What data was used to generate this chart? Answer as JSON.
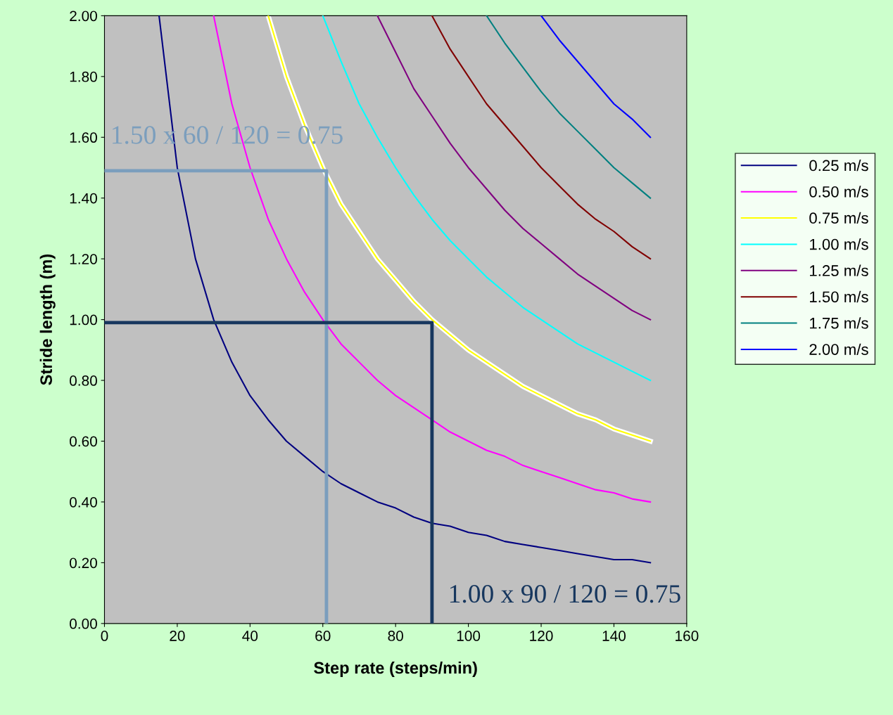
{
  "chart_data": {
    "type": "line",
    "xlabel": "Step rate (steps/min)",
    "ylabel": "Stride length (m)",
    "xlim": [
      0,
      160
    ],
    "xticks": [
      0,
      20,
      40,
      60,
      80,
      100,
      120,
      140,
      160
    ],
    "ylim": [
      0,
      2
    ],
    "yticks": [
      {
        "value": 0,
        "label": "0.00"
      },
      {
        "value": 0.2,
        "label": "0.20"
      },
      {
        "value": 0.4,
        "label": "0.40"
      },
      {
        "value": 0.6,
        "label": "0.60"
      },
      {
        "value": 0.8,
        "label": "0.80"
      },
      {
        "value": 1.0,
        "label": "1.00"
      },
      {
        "value": 1.2,
        "label": "1.20"
      },
      {
        "value": 1.4,
        "label": "1.40"
      },
      {
        "value": 1.6,
        "label": "1.60"
      },
      {
        "value": 1.8,
        "label": "1.80"
      },
      {
        "value": 2.0,
        "label": "2.00"
      }
    ],
    "grid": false,
    "legend": "right",
    "marker": "none",
    "line_style": "solid",
    "series": [
      {
        "color": "#ffffff",
        "x": [
          45,
          50,
          55,
          60,
          65,
          70,
          75,
          80,
          85,
          90,
          95,
          100,
          105,
          110,
          115,
          120,
          125,
          130,
          135,
          140,
          145,
          150
        ],
        "values": [
          2.0,
          1.8,
          1.64,
          1.5,
          1.38,
          1.29,
          1.2,
          1.13,
          1.06,
          1.0,
          0.95,
          0.9,
          0.86,
          0.82,
          0.78,
          0.75,
          0.72,
          0.69,
          0.67,
          0.64,
          0.62,
          0.6
        ]
      },
      {
        "name": "0.25 m/s",
        "color": "#000080",
        "x": [
          15,
          20,
          25,
          30,
          35,
          40,
          45,
          50,
          55,
          60,
          65,
          70,
          75,
          80,
          85,
          90,
          95,
          100,
          105,
          110,
          115,
          120,
          125,
          130,
          135,
          140,
          145,
          150
        ],
        "values": [
          2.0,
          1.5,
          1.2,
          1.0,
          0.86,
          0.75,
          0.67,
          0.6,
          0.55,
          0.5,
          0.46,
          0.43,
          0.4,
          0.38,
          0.35,
          0.33,
          0.32,
          0.3,
          0.29,
          0.27,
          0.26,
          0.25,
          0.24,
          0.23,
          0.22,
          0.21,
          0.21,
          0.2
        ]
      },
      {
        "name": "0.50 m/s",
        "color": "#ff00ff",
        "x": [
          30,
          35,
          40,
          45,
          50,
          55,
          60,
          65,
          70,
          75,
          80,
          85,
          90,
          95,
          100,
          105,
          110,
          115,
          120,
          125,
          130,
          135,
          140,
          145,
          150
        ],
        "values": [
          2.0,
          1.71,
          1.5,
          1.33,
          1.2,
          1.09,
          1.0,
          0.92,
          0.86,
          0.8,
          0.75,
          0.71,
          0.67,
          0.63,
          0.6,
          0.57,
          0.55,
          0.52,
          0.5,
          0.48,
          0.46,
          0.44,
          0.43,
          0.41,
          0.4
        ]
      },
      {
        "name": "0.75 m/s",
        "color": "#ffff00",
        "x": [
          45,
          50,
          55,
          60,
          65,
          70,
          75,
          80,
          85,
          90,
          95,
          100,
          105,
          110,
          115,
          120,
          125,
          130,
          135,
          140,
          145,
          150
        ],
        "values": [
          2.0,
          1.8,
          1.64,
          1.5,
          1.38,
          1.29,
          1.2,
          1.13,
          1.06,
          1.0,
          0.95,
          0.9,
          0.86,
          0.82,
          0.78,
          0.75,
          0.72,
          0.69,
          0.67,
          0.64,
          0.62,
          0.6
        ]
      },
      {
        "name": "1.00 m/s",
        "color": "#00ffff",
        "x": [
          60,
          65,
          70,
          75,
          80,
          85,
          90,
          95,
          100,
          105,
          110,
          115,
          120,
          125,
          130,
          135,
          140,
          145,
          150
        ],
        "values": [
          2.0,
          1.85,
          1.71,
          1.6,
          1.5,
          1.41,
          1.33,
          1.26,
          1.2,
          1.14,
          1.09,
          1.04,
          1.0,
          0.96,
          0.92,
          0.89,
          0.86,
          0.83,
          0.8
        ]
      },
      {
        "name": "1.25 m/s",
        "color": "#800080",
        "x": [
          75,
          80,
          85,
          90,
          95,
          100,
          105,
          110,
          115,
          120,
          125,
          130,
          135,
          140,
          145,
          150
        ],
        "values": [
          2.0,
          1.88,
          1.76,
          1.67,
          1.58,
          1.5,
          1.43,
          1.36,
          1.3,
          1.25,
          1.2,
          1.15,
          1.11,
          1.07,
          1.03,
          1.0
        ]
      },
      {
        "name": "1.50 m/s",
        "color": "#800000",
        "x": [
          90,
          95,
          100,
          105,
          110,
          115,
          120,
          125,
          130,
          135,
          140,
          145,
          150
        ],
        "values": [
          2.0,
          1.89,
          1.8,
          1.71,
          1.64,
          1.57,
          1.5,
          1.44,
          1.38,
          1.33,
          1.29,
          1.24,
          1.2
        ]
      },
      {
        "name": "1.75 m/s",
        "color": "#008080",
        "x": [
          105,
          110,
          115,
          120,
          125,
          130,
          135,
          140,
          145,
          150
        ],
        "values": [
          2.0,
          1.91,
          1.83,
          1.75,
          1.68,
          1.62,
          1.56,
          1.5,
          1.45,
          1.4
        ]
      },
      {
        "name": "2.00 m/s",
        "color": "#0000ff",
        "x": [
          120,
          125,
          130,
          135,
          140,
          145,
          150
        ],
        "values": [
          2.0,
          1.92,
          1.85,
          1.78,
          1.71,
          1.66,
          1.6
        ]
      },
      {
        "color": "#7b9ebd",
        "x": [
          0,
          61,
          61
        ],
        "values": [
          1.49,
          1.49,
          0
        ]
      },
      {
        "color": "#17375e",
        "x": [
          0,
          90,
          90
        ],
        "values": [
          0.99,
          0.99,
          0
        ]
      }
    ],
    "annotations": [
      "1.50 x 60 / 120 = 0.75",
      "1.00 x 90 / 120 = 0.75"
    ]
  }
}
